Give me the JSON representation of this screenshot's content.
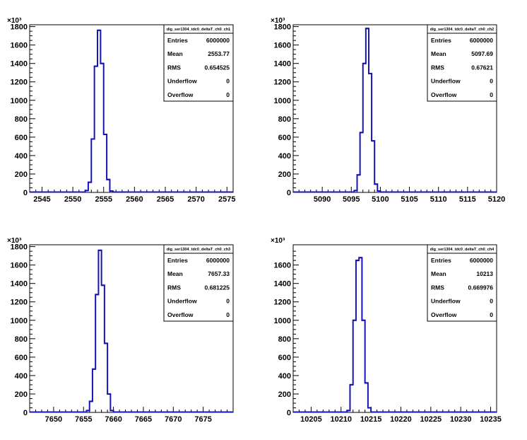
{
  "chart_data": [
    {
      "type": "histogram",
      "title": "dig_ser1304_tdc0_deltaT_ch0_ch1",
      "y_exponent": "×10³",
      "x_range": [
        2543,
        2576
      ],
      "y_range": [
        0,
        1820
      ],
      "x_ticks": [
        2545,
        2550,
        2555,
        2560,
        2565,
        2570,
        2575
      ],
      "y_ticks": [
        0,
        200,
        400,
        600,
        800,
        1000,
        1200,
        1400,
        1600,
        1800
      ],
      "bin_width": 0.5,
      "bins": [
        {
          "x": 2552.0,
          "y": 20
        },
        {
          "x": 2552.5,
          "y": 110
        },
        {
          "x": 2553.0,
          "y": 580
        },
        {
          "x": 2553.5,
          "y": 1370
        },
        {
          "x": 2554.0,
          "y": 1760
        },
        {
          "x": 2554.5,
          "y": 1400
        },
        {
          "x": 2555.0,
          "y": 630
        },
        {
          "x": 2555.5,
          "y": 140
        },
        {
          "x": 2556.0,
          "y": 15
        }
      ],
      "stats": [
        {
          "label": "Entries",
          "value": "6000000"
        },
        {
          "label": "Mean",
          "value": "2553.77"
        },
        {
          "label": "RMS",
          "value": "0.654525"
        },
        {
          "label": "Underflow",
          "value": "0"
        },
        {
          "label": "Overflow",
          "value": "0"
        }
      ]
    },
    {
      "type": "histogram",
      "title": "dig_ser1304_tdc0_deltaT_ch0_ch2",
      "y_exponent": "×10³",
      "x_range": [
        5085,
        5120
      ],
      "y_range": [
        0,
        1820
      ],
      "x_ticks": [
        5090,
        5095,
        5100,
        5105,
        5110,
        5115,
        5120
      ],
      "y_ticks": [
        0,
        200,
        400,
        600,
        800,
        1000,
        1200,
        1400,
        1600,
        1800
      ],
      "bin_width": 0.5,
      "bins": [
        {
          "x": 5095.5,
          "y": 20
        },
        {
          "x": 5096.0,
          "y": 190
        },
        {
          "x": 5096.5,
          "y": 650
        },
        {
          "x": 5097.0,
          "y": 1400
        },
        {
          "x": 5097.5,
          "y": 1780
        },
        {
          "x": 5098.0,
          "y": 1290
        },
        {
          "x": 5098.5,
          "y": 560
        },
        {
          "x": 5099.0,
          "y": 90
        },
        {
          "x": 5099.5,
          "y": 15
        }
      ],
      "stats": [
        {
          "label": "Entries",
          "value": "6000000"
        },
        {
          "label": "Mean",
          "value": "5097.69"
        },
        {
          "label": "RMS",
          "value": "0.67621"
        },
        {
          "label": "Underflow",
          "value": "0"
        },
        {
          "label": "Overflow",
          "value": "0"
        }
      ]
    },
    {
      "type": "histogram",
      "title": "dig_ser1304_tdc0_deltaT_ch0_ch3",
      "y_exponent": "×10³",
      "x_range": [
        7646,
        7680
      ],
      "y_range": [
        0,
        1820
      ],
      "x_ticks": [
        7650,
        7655,
        7660,
        7665,
        7670,
        7675
      ],
      "y_ticks": [
        0,
        200,
        400,
        600,
        800,
        1000,
        1200,
        1400,
        1600,
        1800
      ],
      "bin_width": 0.5,
      "bins": [
        {
          "x": 7655.5,
          "y": 20
        },
        {
          "x": 7656.0,
          "y": 120
        },
        {
          "x": 7656.5,
          "y": 470
        },
        {
          "x": 7657.0,
          "y": 1280
        },
        {
          "x": 7657.5,
          "y": 1760
        },
        {
          "x": 7658.0,
          "y": 1380
        },
        {
          "x": 7658.5,
          "y": 750
        },
        {
          "x": 7659.0,
          "y": 200
        },
        {
          "x": 7659.5,
          "y": 20
        }
      ],
      "stats": [
        {
          "label": "Entries",
          "value": "6000000"
        },
        {
          "label": "Mean",
          "value": "7657.33"
        },
        {
          "label": "RMS",
          "value": "0.681225"
        },
        {
          "label": "Underflow",
          "value": "0"
        },
        {
          "label": "Overflow",
          "value": "0"
        }
      ]
    },
    {
      "type": "histogram",
      "title": "dig_ser1304_tdc0_deltaT_ch0_ch4",
      "y_exponent": "×10³",
      "x_range": [
        10202,
        10236
      ],
      "y_range": [
        0,
        1820
      ],
      "x_ticks": [
        10205,
        10210,
        10215,
        10220,
        10225,
        10230,
        10235
      ],
      "y_ticks": [
        0,
        200,
        400,
        600,
        800,
        1000,
        1200,
        1400,
        1600
      ],
      "bin_width": 0.5,
      "bins": [
        {
          "x": 10211.0,
          "y": 20
        },
        {
          "x": 10211.5,
          "y": 300
        },
        {
          "x": 10212.0,
          "y": 1000
        },
        {
          "x": 10212.5,
          "y": 1650
        },
        {
          "x": 10213.0,
          "y": 1680
        },
        {
          "x": 10213.5,
          "y": 1000
        },
        {
          "x": 10214.0,
          "y": 320
        },
        {
          "x": 10214.5,
          "y": 50
        }
      ],
      "stats": [
        {
          "label": "Entries",
          "value": "6000000"
        },
        {
          "label": "Mean",
          "value": "10213"
        },
        {
          "label": "RMS",
          "value": "0.669976"
        },
        {
          "label": "Underflow",
          "value": "0"
        },
        {
          "label": "Overflow",
          "value": "0"
        }
      ]
    }
  ],
  "colors": {
    "histogram_line": "#1414b8",
    "axis": "#000000",
    "background": "#ffffff"
  }
}
